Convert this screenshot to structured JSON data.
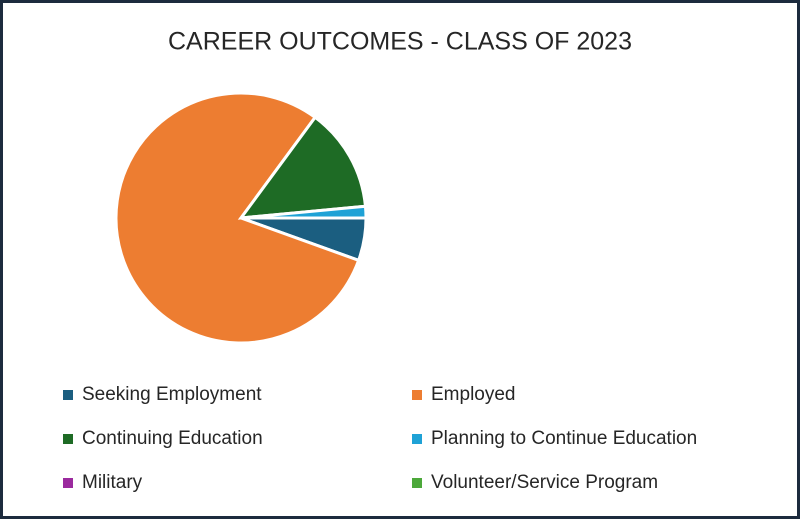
{
  "chart_data": {
    "type": "pie",
    "title": "CAREER OUTCOMES - CLASS OF 2023",
    "categories": [
      "Seeking Employment",
      "Employed",
      "Continuing Education",
      "Planning to Continue Education",
      "Military",
      "Volunteer/Service Program"
    ],
    "values": [
      5.5,
      79.6,
      13.4,
      1.5,
      0,
      0
    ],
    "colors": [
      "#1b5e80",
      "#ed7d31",
      "#1e6b25",
      "#1fa2d6",
      "#9b2a9e",
      "#4ca83a"
    ],
    "legend": "bottom"
  }
}
